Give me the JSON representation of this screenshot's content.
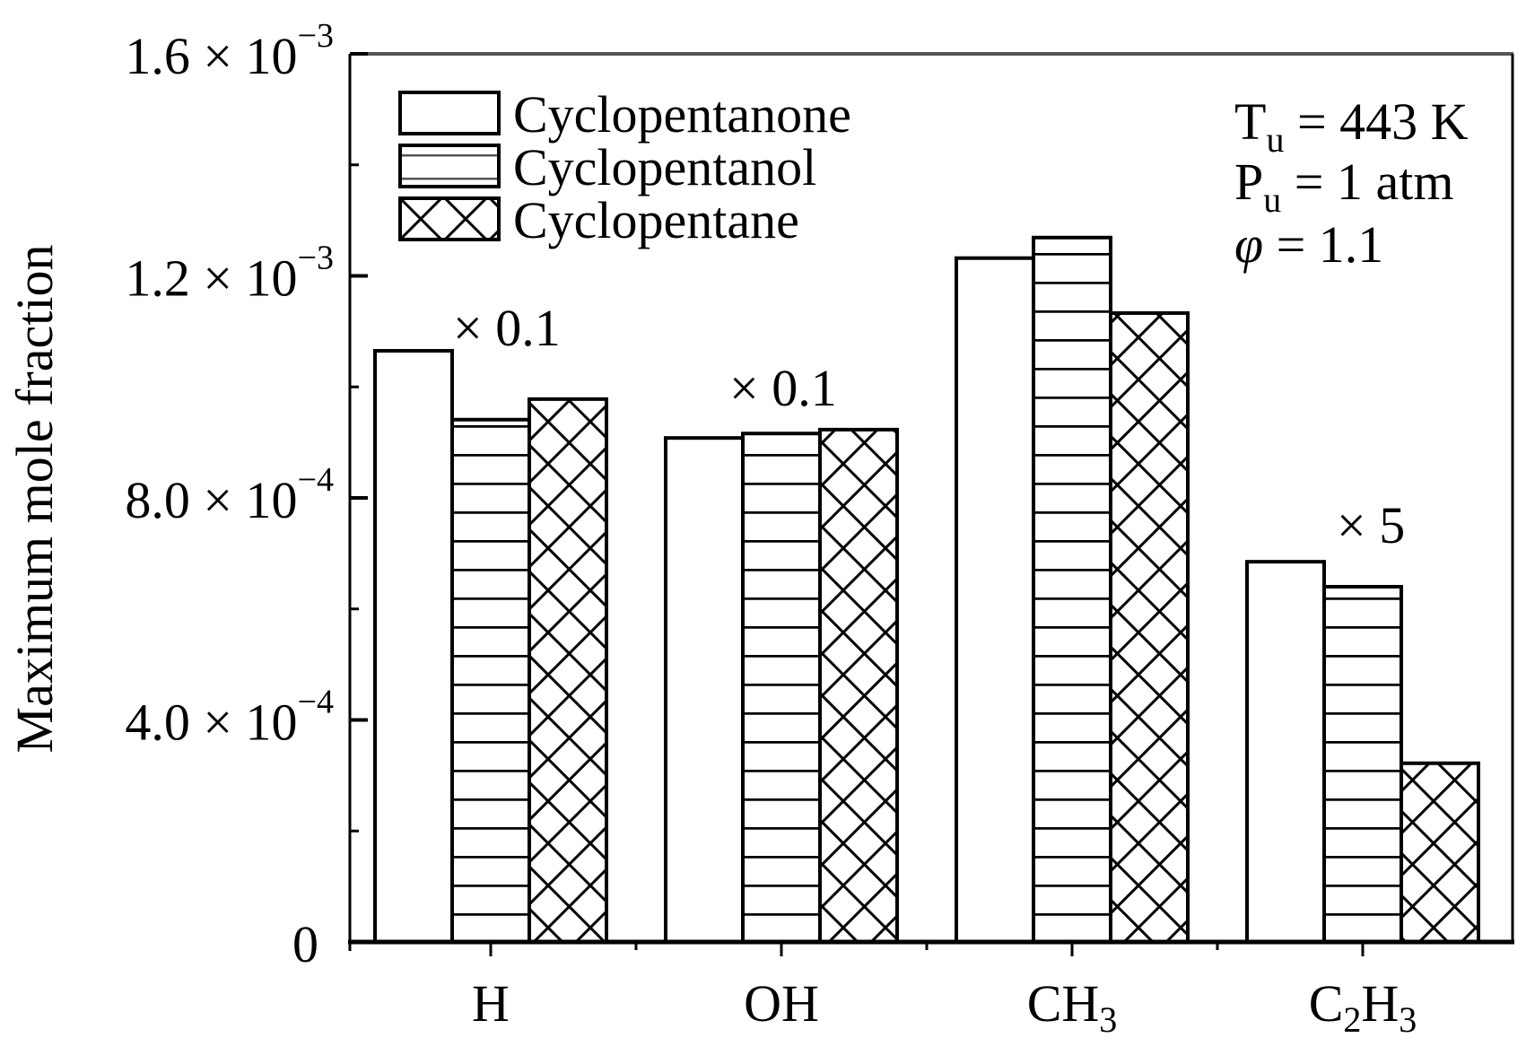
{
  "chart_data": {
    "type": "bar",
    "title": "",
    "xlabel": "",
    "ylabel": "Maximum mole fraction",
    "ylim": [
      0,
      0.0016
    ],
    "grid": false,
    "legend_position": "upper-left-inside",
    "categories": [
      {
        "id": "H",
        "label": "H",
        "parts": [
          {
            "t": "H",
            "sub": false
          }
        ],
        "multiplier": "× 0.1"
      },
      {
        "id": "OH",
        "label": "OH",
        "parts": [
          {
            "t": "OH",
            "sub": false
          }
        ],
        "multiplier": "× 0.1"
      },
      {
        "id": "CH3",
        "label": "CH3",
        "parts": [
          {
            "t": "CH",
            "sub": false
          },
          {
            "t": "3",
            "sub": true
          }
        ],
        "multiplier": ""
      },
      {
        "id": "C2H3",
        "label": "C2H3",
        "parts": [
          {
            "t": "C",
            "sub": false
          },
          {
            "t": "2",
            "sub": true
          },
          {
            "t": "H",
            "sub": false
          },
          {
            "t": "3",
            "sub": true
          }
        ],
        "multiplier": "× 5"
      }
    ],
    "series": [
      {
        "name": "Cyclopentanone",
        "pattern": "none",
        "values": [
          0.001065,
          0.000908,
          0.001232,
          0.000685
        ]
      },
      {
        "name": "Cyclopentanol",
        "pattern": "horizontal",
        "values": [
          0.000941,
          0.000916,
          0.001269,
          0.00064
        ]
      },
      {
        "name": "Cyclopentane",
        "pattern": "crosshatch",
        "values": [
          0.000978,
          0.000923,
          0.001133,
          0.000322
        ]
      }
    ],
    "y_ticks": [
      {
        "value": 0,
        "mantissa": "0",
        "exponent": ""
      },
      {
        "value": 0.0004,
        "mantissa": "4.0 × 10",
        "exponent": "−4"
      },
      {
        "value": 0.0008,
        "mantissa": "8.0 × 10",
        "exponent": "−4"
      },
      {
        "value": 0.0012,
        "mantissa": "1.2 × 10",
        "exponent": "−3"
      },
      {
        "value": 0.0016,
        "mantissa": "1.6 × 10",
        "exponent": "−3"
      }
    ],
    "y_minor_ticks": [
      0.0002,
      0.0006,
      0.001,
      0.0014
    ],
    "annotations": {
      "conditions": [
        {
          "main": "T",
          "sub": "u",
          "rest": " = 443 K"
        },
        {
          "main": "P",
          "sub": "u",
          "rest": " = 1 atm"
        },
        {
          "main": "φ",
          "sub": "",
          "rest": " = 1.1"
        }
      ],
      "multipliers_note": "Bar heights for H and OH are scaled × 0.1; C2H3 scaled × 5"
    }
  },
  "colors": {
    "ink": "#000000",
    "background": "#ffffff",
    "frame_top": "#555555"
  }
}
